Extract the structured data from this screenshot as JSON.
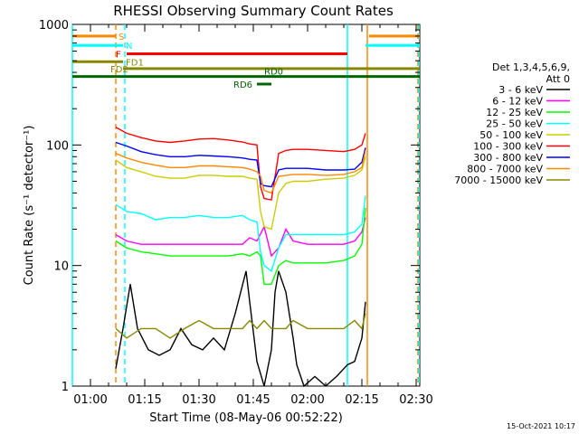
{
  "chart_data": {
    "type": "line",
    "title": "RHESSI Observing Summary Count Rates",
    "xlabel": "Start Time (08-May-06 00:52:22)",
    "ylabel": "Count Rate (s⁻¹ detector⁻¹)",
    "x_unit": "minutes after 00:00 UT",
    "xlim": [
      55,
      151
    ],
    "ylim": [
      1,
      1000
    ],
    "yscale": "log",
    "x_ticks": [
      {
        "label": "01:00",
        "value": 60
      },
      {
        "label": "01:15",
        "value": 75
      },
      {
        "label": "01:30",
        "value": 90
      },
      {
        "label": "01:45",
        "value": 105
      },
      {
        "label": "02:00",
        "value": 120
      },
      {
        "label": "02:15",
        "value": 135
      },
      {
        "label": "02:30",
        "value": 150
      }
    ],
    "y_ticks": [
      {
        "label": "1",
        "value": 1
      },
      {
        "label": "10",
        "value": 10
      },
      {
        "label": "100",
        "value": 100
      },
      {
        "label": "1000",
        "value": 1000
      }
    ],
    "legend": {
      "title_line1": "Det 1,3,4,5,6,9,",
      "title_line2": "Att 0",
      "placement": "right"
    },
    "series": [
      {
        "name": "3 - 6 keV",
        "color": "#000000",
        "x": [
          67,
          69,
          71,
          73,
          76,
          79,
          82,
          85,
          88,
          91,
          94,
          97,
          100,
          103,
          104,
          106,
          108,
          110,
          111,
          112,
          114,
          116,
          117,
          119,
          122,
          125,
          128,
          131,
          133,
          135,
          136
        ],
        "y": [
          1.4,
          3,
          7,
          3,
          2,
          1.8,
          2,
          3,
          2.2,
          2,
          2.5,
          2,
          4,
          9,
          5,
          1.6,
          1,
          2,
          6,
          9,
          6,
          2.5,
          1.5,
          1,
          1.2,
          1,
          1.2,
          1.5,
          1.6,
          2.5,
          5
        ]
      },
      {
        "name": "6 - 12 keV",
        "color": "#ff00ff",
        "x": [
          67,
          70,
          74,
          78,
          82,
          86,
          90,
          94,
          98,
          102,
          104,
          106,
          108,
          110,
          112,
          114,
          116,
          120,
          125,
          130,
          133,
          135,
          136
        ],
        "y": [
          18,
          16,
          15,
          15,
          15,
          15,
          15,
          15,
          15,
          15,
          17,
          16,
          21,
          12,
          14,
          20,
          16,
          15,
          15,
          15,
          16,
          19,
          25
        ]
      },
      {
        "name": "12 - 25 keV",
        "color": "#00ff00",
        "x": [
          67,
          70,
          74,
          78,
          82,
          86,
          90,
          94,
          98,
          102,
          104,
          106,
          107,
          108,
          110,
          112,
          114,
          116,
          120,
          125,
          130,
          133,
          135,
          136
        ],
        "y": [
          16,
          14,
          13,
          12.5,
          12,
          12,
          12,
          12,
          12,
          12.5,
          12,
          13,
          12,
          7,
          7,
          10,
          11,
          10.5,
          10.5,
          10.5,
          11,
          12,
          15,
          30
        ]
      },
      {
        "name": "25 - 50 keV",
        "color": "#00ffff",
        "x": [
          67,
          70,
          74,
          78,
          82,
          86,
          90,
          94,
          98,
          102,
          104,
          106,
          107,
          108,
          110,
          112,
          114,
          116,
          120,
          125,
          130,
          133,
          135,
          136
        ],
        "y": [
          32,
          28,
          27,
          24,
          25,
          25,
          26,
          25,
          25,
          26,
          24,
          23,
          13,
          10,
          9,
          14,
          18,
          18,
          18,
          18,
          18,
          19,
          22,
          38
        ]
      },
      {
        "name": "50 - 100 keV",
        "color": "#cccc00",
        "x": [
          67,
          70,
          74,
          78,
          82,
          86,
          90,
          94,
          98,
          102,
          104,
          106,
          107,
          108,
          110,
          112,
          114,
          116,
          120,
          125,
          130,
          133,
          135,
          136
        ],
        "y": [
          75,
          65,
          60,
          55,
          53,
          53,
          56,
          56,
          55,
          55,
          53,
          52,
          28,
          21,
          20,
          40,
          48,
          50,
          50,
          52,
          53,
          56,
          62,
          80
        ]
      },
      {
        "name": "100 - 300 keV",
        "color": "#ff0000",
        "x": [
          67,
          70,
          74,
          78,
          82,
          86,
          90,
          94,
          98,
          102,
          104,
          106,
          107,
          108,
          110,
          112,
          114,
          116,
          120,
          125,
          130,
          133,
          135,
          136
        ],
        "y": [
          140,
          125,
          115,
          108,
          105,
          108,
          112,
          113,
          110,
          106,
          102,
          100,
          45,
          36,
          35,
          85,
          90,
          92,
          92,
          90,
          88,
          92,
          100,
          125
        ]
      },
      {
        "name": "300 - 800 keV",
        "color": "#0000ff",
        "x": [
          67,
          70,
          74,
          78,
          82,
          86,
          90,
          94,
          98,
          102,
          104,
          106,
          107,
          108,
          110,
          112,
          114,
          116,
          120,
          125,
          130,
          133,
          135,
          136
        ],
        "y": [
          105,
          98,
          88,
          83,
          80,
          80,
          82,
          81,
          80,
          78,
          76,
          75,
          48,
          46,
          45,
          62,
          64,
          64,
          64,
          62,
          62,
          63,
          72,
          95
        ]
      },
      {
        "name": "800 - 7000 keV",
        "color": "#ff8800",
        "x": [
          67,
          70,
          74,
          78,
          82,
          86,
          90,
          94,
          98,
          102,
          104,
          106,
          107,
          108,
          110,
          112,
          114,
          116,
          120,
          125,
          130,
          133,
          135,
          136
        ],
        "y": [
          85,
          78,
          72,
          68,
          65,
          65,
          67,
          67,
          66,
          65,
          63,
          60,
          55,
          42,
          40,
          55,
          56,
          57,
          57,
          56,
          57,
          60,
          65,
          90
        ]
      },
      {
        "name": "7000 - 15000 keV",
        "color": "#888800",
        "x": [
          67,
          70,
          74,
          78,
          82,
          86,
          90,
          94,
          98,
          102,
          104,
          106,
          108,
          110,
          112,
          114,
          116,
          120,
          125,
          130,
          133,
          135,
          136
        ],
        "y": [
          3,
          2.5,
          3,
          3,
          2.5,
          3,
          3.5,
          3,
          3,
          3,
          3.5,
          3,
          3.5,
          3,
          3,
          3,
          3.5,
          3,
          3,
          3,
          3.5,
          3,
          4
        ]
      }
    ],
    "flags": [
      {
        "label": "S",
        "color": "#ff8800",
        "x_start": 55,
        "x_end": 67,
        "x2_start": 137,
        "x2_end": 151,
        "y": 800
      },
      {
        "label": "N",
        "color": "#00ffff",
        "x_start": 55,
        "x_end": 69,
        "x2_start": 136,
        "x2_end": 151,
        "y": 670
      },
      {
        "label": "F",
        "color": "#ff0000",
        "x_start": 70,
        "x_end": 131,
        "y": 570
      },
      {
        "label": "FD1",
        "color": "#888800",
        "x_start": 55,
        "x_end": 69,
        "y": 490
      },
      {
        "label": "FD2",
        "color": "#888800",
        "x_start": 69,
        "x_end": 151,
        "y": 430
      },
      {
        "label": "RD0",
        "color": "#006600",
        "x_start": 55,
        "x_end": 151,
        "y": 370
      },
      {
        "label": "RD6",
        "color": "#006600",
        "x_start": 106,
        "x_end": 110,
        "y": 320
      }
    ],
    "vlines": [
      {
        "x": 55,
        "color": "#00ffff",
        "style": "solid"
      },
      {
        "x": 67,
        "color": "#ff8800",
        "style": "dashed"
      },
      {
        "x": 69.5,
        "color": "#00ffff",
        "style": "dashed"
      },
      {
        "x": 131,
        "color": "#00ffff",
        "style": "solid"
      },
      {
        "x": 136.5,
        "color": "#ff8800",
        "style": "solid"
      },
      {
        "x": 150.5,
        "color": "#ff8800",
        "style": "dashed"
      },
      {
        "x": 150.8,
        "color": "#00ffff",
        "style": "dashed"
      }
    ]
  },
  "footer_date": "15-Oct-2021 10:17"
}
